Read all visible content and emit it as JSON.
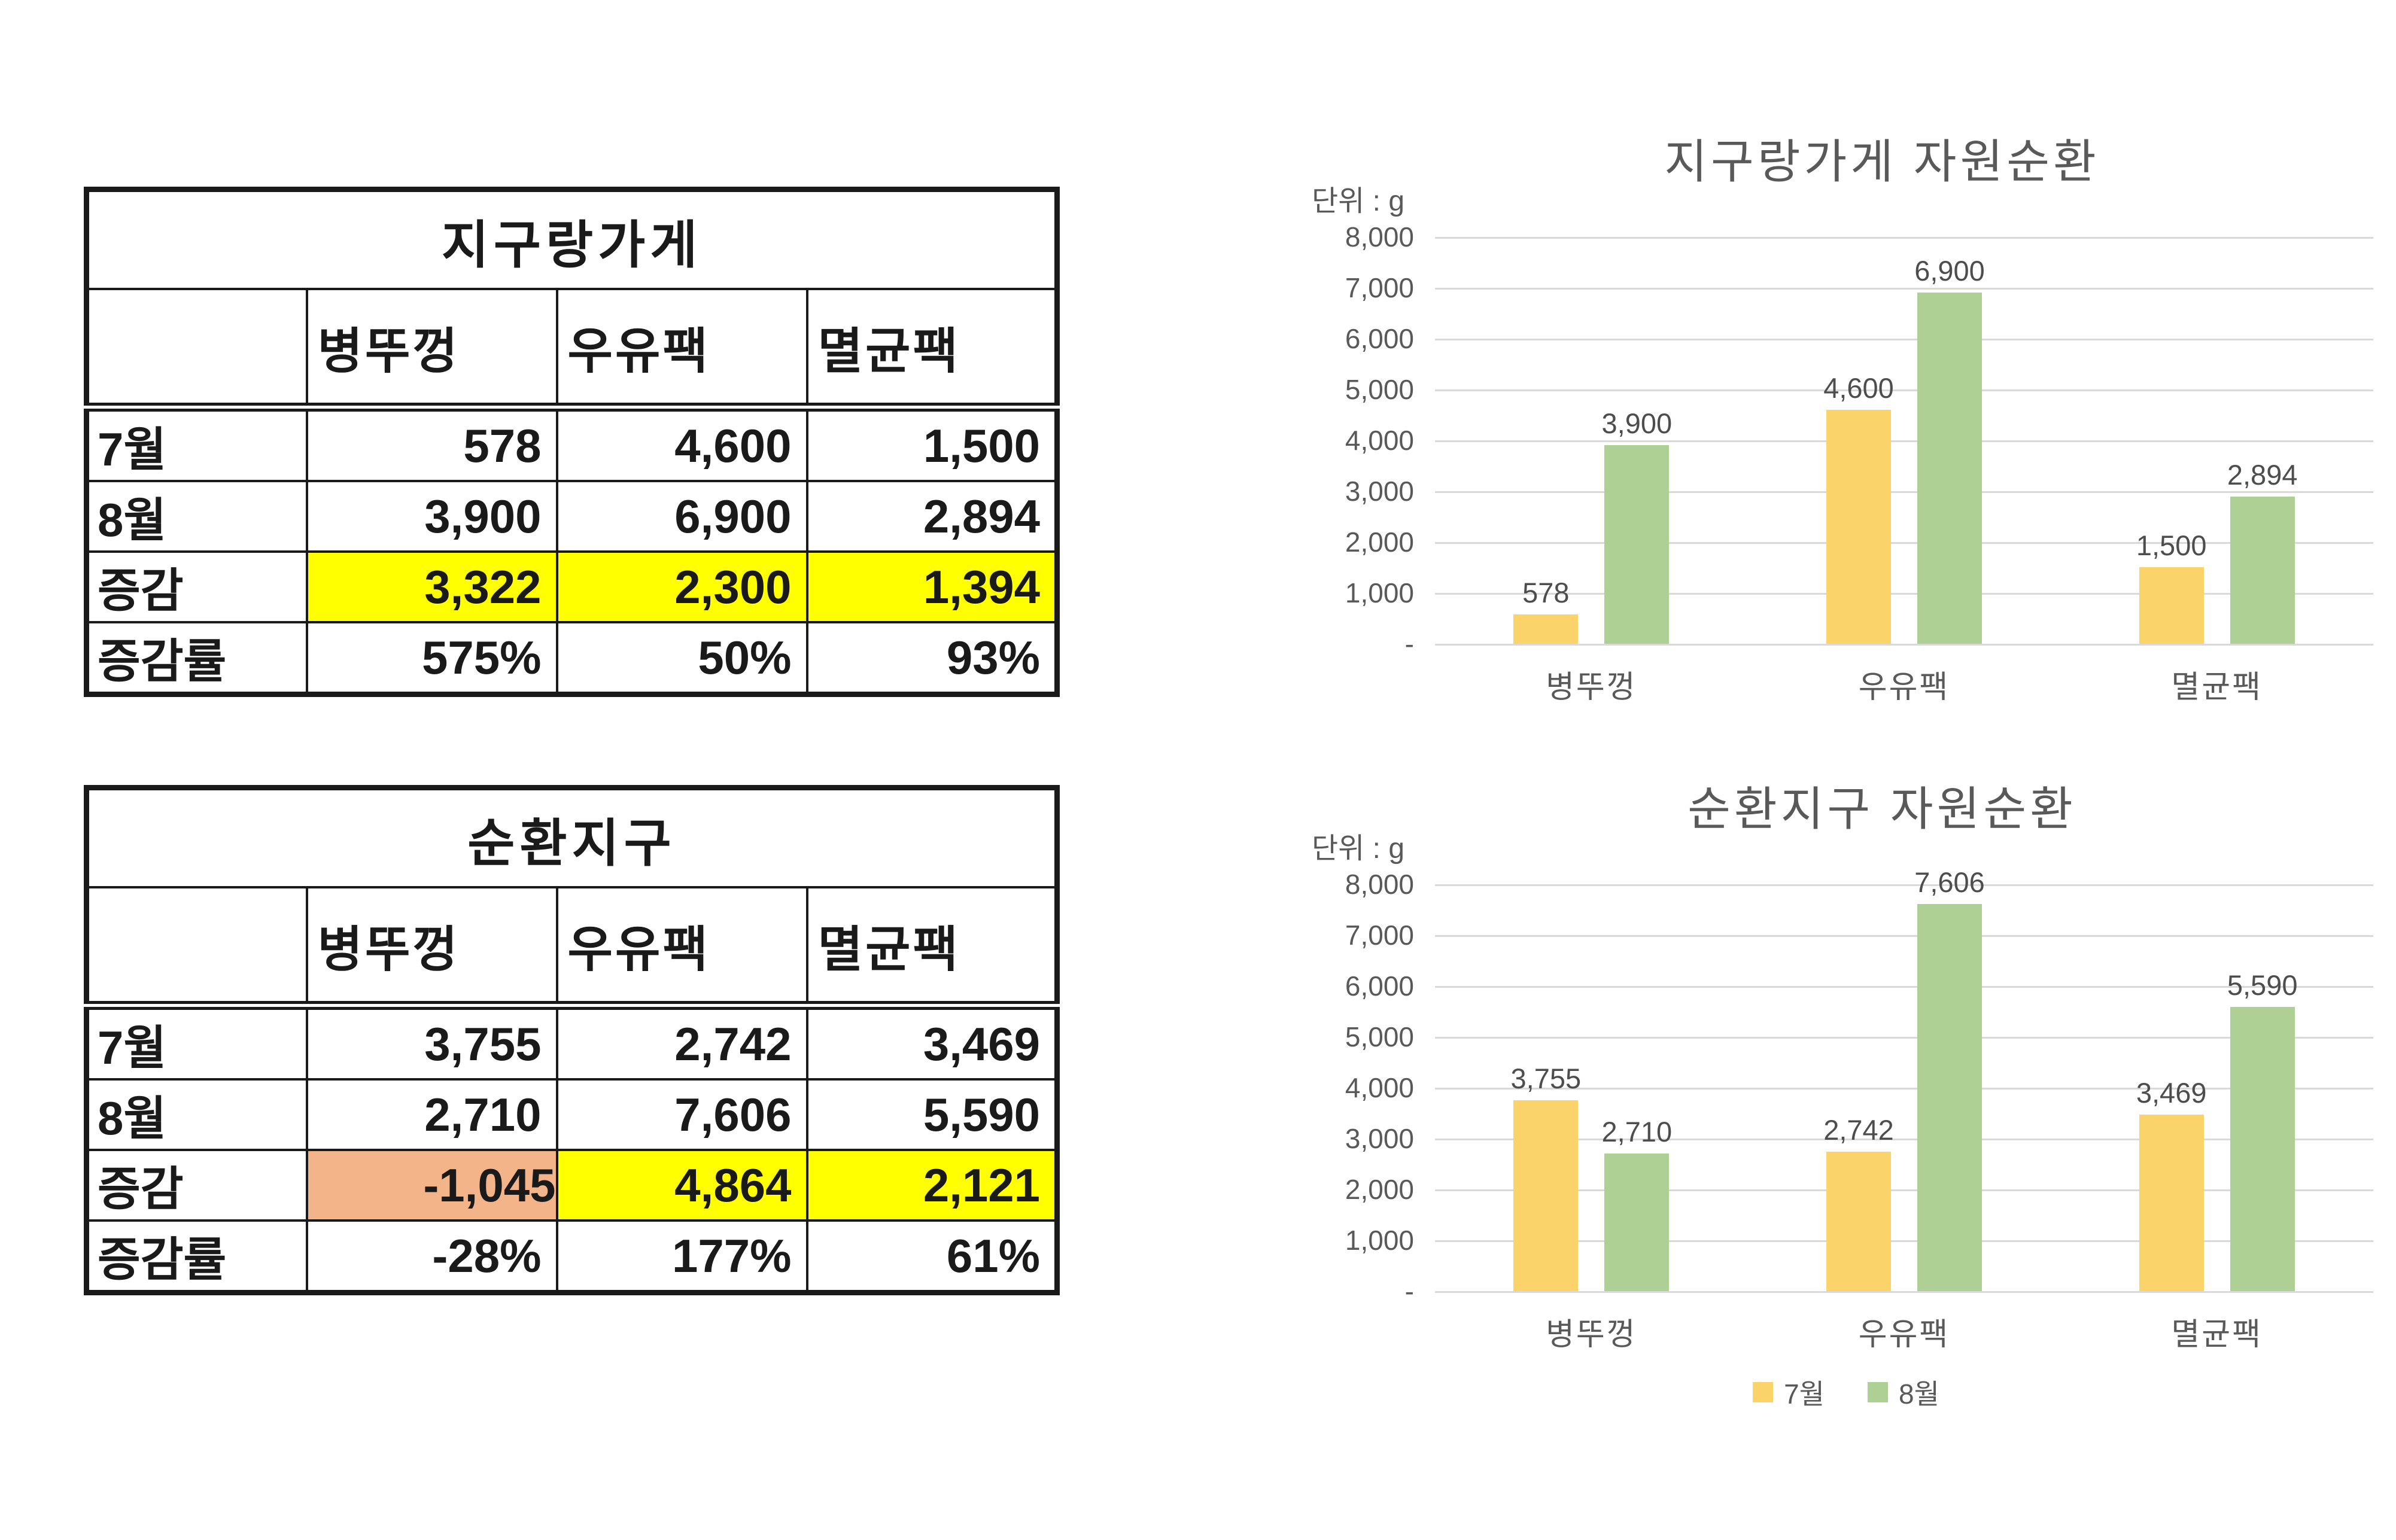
{
  "page": {
    "background": "#ffffff"
  },
  "colors": {
    "yellow": "#ffff00",
    "orange": "#f2b488",
    "bar_jul": "#fad46b",
    "bar_aug": "#afd095",
    "grid": "#d9d9d9",
    "chart_text": "#595959",
    "table_border": "#1a1a1a"
  },
  "tables": [
    {
      "title": "지구랑가게",
      "columns": [
        "",
        "병뚜껑",
        "우유팩",
        "멸균팩"
      ],
      "rows": [
        {
          "label": "7월",
          "cells": [
            {
              "text": "578"
            },
            {
              "text": "4,600"
            },
            {
              "text": "1,500"
            }
          ]
        },
        {
          "label": "8월",
          "cells": [
            {
              "text": "3,900"
            },
            {
              "text": "6,900"
            },
            {
              "text": "2,894"
            }
          ]
        },
        {
          "label": "증감",
          "cells": [
            {
              "text": "3,322",
              "bg": "yellow"
            },
            {
              "text": "2,300",
              "bg": "yellow"
            },
            {
              "text": "1,394",
              "bg": "yellow"
            }
          ]
        },
        {
          "label": "증감률",
          "cells": [
            {
              "text": "575%"
            },
            {
              "text": "50%"
            },
            {
              "text": "93%"
            }
          ]
        }
      ]
    },
    {
      "title": "순환지구",
      "columns": [
        "",
        "병뚜껑",
        "우유팩",
        "멸균팩"
      ],
      "rows": [
        {
          "label": "7월",
          "cells": [
            {
              "text": "3,755"
            },
            {
              "text": "2,742"
            },
            {
              "text": "3,469"
            }
          ]
        },
        {
          "label": "8월",
          "cells": [
            {
              "text": "2,710"
            },
            {
              "text": "7,606"
            },
            {
              "text": "5,590"
            }
          ]
        },
        {
          "label": "증감",
          "cells": [
            {
              "text": "1,045",
              "minus": "-",
              "bg": "orange"
            },
            {
              "text": "4,864",
              "bg": "yellow"
            },
            {
              "text": "2,121",
              "bg": "yellow"
            }
          ]
        },
        {
          "label": "증감률",
          "cells": [
            {
              "text": "-28%"
            },
            {
              "text": "177%"
            },
            {
              "text": "61%"
            }
          ]
        }
      ]
    }
  ],
  "chart_data": [
    {
      "type": "bar",
      "title": "지구랑가게 자원순환",
      "unit_label": "단위 : g",
      "categories": [
        "병뚜껑",
        "우유팩",
        "멸균팩"
      ],
      "series": [
        {
          "name": "7월",
          "color": "#fad46b",
          "values": [
            578,
            4600,
            1500
          ],
          "labels": [
            "578",
            "4,600",
            "1,500"
          ]
        },
        {
          "name": "8월",
          "color": "#afd095",
          "values": [
            3900,
            6900,
            2894
          ],
          "labels": [
            "3,900",
            "6,900",
            "2,894"
          ]
        }
      ],
      "ylim": [
        0,
        8000
      ],
      "ytick_labels": [
        "8,000",
        "7,000",
        "6,000",
        "5,000",
        "4,000",
        "3,000",
        "2,000",
        "1,000",
        "-"
      ],
      "grid": true,
      "legend": {
        "show": false,
        "position": "bottom"
      }
    },
    {
      "type": "bar",
      "title": "순환지구 자원순환",
      "unit_label": "단위 : g",
      "categories": [
        "병뚜껑",
        "우유팩",
        "멸균팩"
      ],
      "series": [
        {
          "name": "7월",
          "color": "#fad46b",
          "values": [
            3755,
            2742,
            3469
          ],
          "labels": [
            "3,755",
            "2,742",
            "3,469"
          ]
        },
        {
          "name": "8월",
          "color": "#afd095",
          "values": [
            2710,
            7606,
            5590
          ],
          "labels": [
            "2,710",
            "7,606",
            "5,590"
          ]
        }
      ],
      "ylim": [
        0,
        8000
      ],
      "ytick_labels": [
        "8,000",
        "7,000",
        "6,000",
        "5,000",
        "4,000",
        "3,000",
        "2,000",
        "1,000",
        "-"
      ],
      "grid": true,
      "legend": {
        "show": true,
        "position": "bottom"
      }
    }
  ]
}
